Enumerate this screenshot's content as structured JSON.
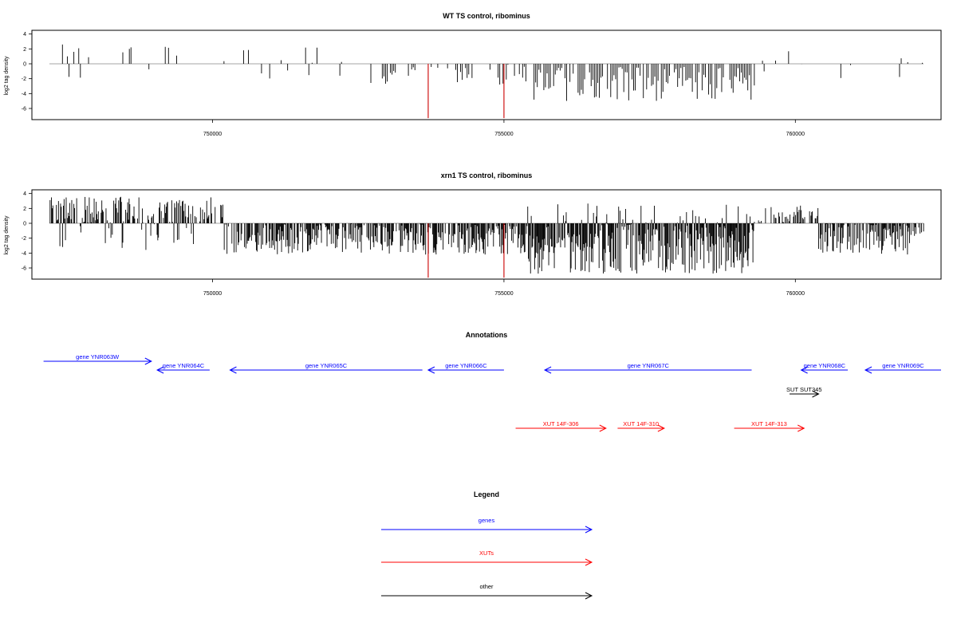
{
  "colors": {
    "genes": "#0000ff",
    "xuts": "#ff0000",
    "other": "#000000",
    "highlight": "#cc0000"
  },
  "chart_data": [
    {
      "type": "bar",
      "title": "WT TS control, ribominus",
      "ylabel": "log2 tag density",
      "xlim": [
        746900,
        762500
      ],
      "ylim": [
        -7.5,
        4.5
      ],
      "xticks": [
        750000,
        755000,
        760000
      ],
      "yticks": [
        4,
        2,
        0,
        -2,
        -4,
        -6
      ],
      "grid": false,
      "series_note": "density bars per position",
      "highlights": [
        {
          "x": 753700,
          "y": -7.3
        },
        {
          "x": 755000,
          "y": -7.3
        }
      ]
    },
    {
      "type": "bar",
      "title": "xrn1 TS control, ribominus",
      "ylabel": "log2 tag density",
      "xlim": [
        746900,
        762500
      ],
      "ylim": [
        -7.5,
        4.5
      ],
      "xticks": [
        750000,
        755000,
        760000
      ],
      "yticks": [
        4,
        2,
        0,
        -2,
        -4,
        -6
      ],
      "grid": false,
      "highlights": [
        {
          "x": 753700,
          "y": -7.3
        },
        {
          "x": 755000,
          "y": -7.3
        }
      ]
    }
  ],
  "annotations": {
    "title": "Annotations",
    "items": [
      {
        "label": "gene YNR063W",
        "type": "genes",
        "start": 747100,
        "end": 748950,
        "row": 0
      },
      {
        "label": "gene YNR064C",
        "type": "genes",
        "start": 749950,
        "end": 749050,
        "row": 1
      },
      {
        "label": "gene YNR065C",
        "type": "genes",
        "start": 753600,
        "end": 750300,
        "row": 1
      },
      {
        "label": "gene YNR066C",
        "type": "genes",
        "start": 755000,
        "end": 753700,
        "row": 1
      },
      {
        "label": "gene YNR067C",
        "type": "genes",
        "start": 759250,
        "end": 755700,
        "row": 1
      },
      {
        "label": "gene YNR068C",
        "type": "genes",
        "start": 760900,
        "end": 760100,
        "row": 1
      },
      {
        "label": "gene YNR069C",
        "type": "genes",
        "start": 762500,
        "end": 761200,
        "row": 1
      },
      {
        "label": "SUT SUT345",
        "type": "other",
        "start": 759900,
        "end": 760400,
        "row": 2
      },
      {
        "label": "XUT 14F-306",
        "type": "xuts",
        "start": 755200,
        "end": 756750,
        "row": 3
      },
      {
        "label": "XUT 14F-310",
        "type": "xuts",
        "start": 756950,
        "end": 757750,
        "row": 3
      },
      {
        "label": "XUT 14F-313",
        "type": "xuts",
        "start": 758950,
        "end": 760150,
        "row": 3
      }
    ]
  },
  "legend": {
    "title": "Legend",
    "items": [
      {
        "label": "genes",
        "type": "genes"
      },
      {
        "label": "XUTs",
        "type": "xuts"
      },
      {
        "label": "other",
        "type": "other"
      }
    ]
  }
}
